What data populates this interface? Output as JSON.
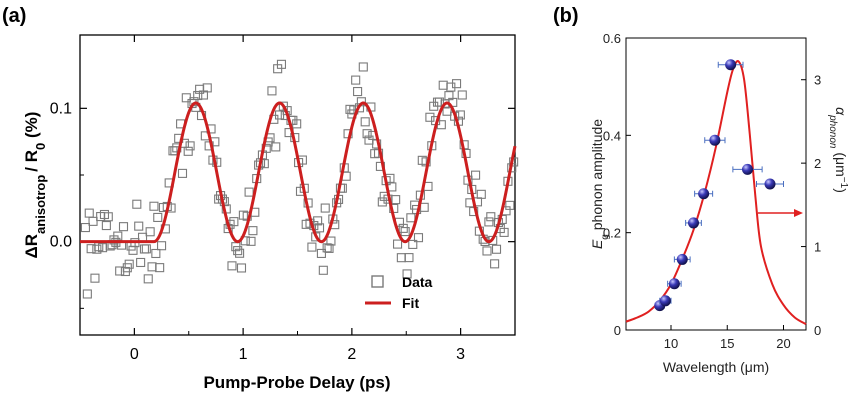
{
  "colors": {
    "fit": "#cc1f1f",
    "data": "#7a7a7a",
    "sphere": "#2a2a9a",
    "alpha_curve": "#e02020"
  },
  "chart_data": [
    {
      "panel_label": "(a)",
      "type": "scatter",
      "xlabel": "Pump-Probe Delay (ps)",
      "ylabel": {
        "main": "ΔR",
        "sub": "anisotrop",
        "mid": "/ R",
        "sub2": "0",
        "tail": " (%)"
      },
      "xlim": [
        -0.5,
        3.5
      ],
      "ylim": [
        -0.07,
        0.155
      ],
      "xticks": [
        0,
        1,
        2,
        3
      ],
      "yticks": [
        0.0,
        0.1
      ],
      "xtick_labels": [
        "0",
        "1",
        "2",
        "3"
      ],
      "ytick_labels": [
        "0.0",
        "0.1"
      ],
      "legend": {
        "position": "bottom-right",
        "entries": [
          "Data",
          "Fit"
        ]
      },
      "series": [
        {
          "name": "Data",
          "style": "open-square",
          "sampling": "x from -0.45 to 3.5 in ~0.0175 ps steps, values scatter about the fit with ±0.02 noise",
          "amplitude": 0.052,
          "offset": 0.052
        },
        {
          "name": "Fit",
          "style": "line",
          "onset": 0.18,
          "period": 0.77,
          "amplitude": 0.052,
          "offset": 0.052
        }
      ]
    },
    {
      "panel_label": "(b)",
      "type": "scatter",
      "xlabel": "Wavelength (μm)",
      "ylabel_left": {
        "sym": "E",
        "sub": "g",
        "rest": " phonon amplitude"
      },
      "ylabel_right": {
        "sym": "α",
        "sub": "phonon",
        "rest": " (μm",
        "sup": "−1",
        "close": ")"
      },
      "xlim": [
        6,
        22
      ],
      "ylim_left": [
        0,
        0.6
      ],
      "ylim_right": [
        0,
        3.5
      ],
      "xticks": [
        10,
        15,
        20
      ],
      "xtick_labels": [
        "10",
        "15",
        "20"
      ],
      "yticks_left": [
        0,
        0.2,
        0.4,
        0.6
      ],
      "ytick_labels_left": [
        "0",
        "0.2",
        "0.4",
        "0.6"
      ],
      "yticks_right": [
        0,
        1,
        2,
        3
      ],
      "ytick_labels_right": [
        "0",
        "1",
        "2",
        "3"
      ],
      "points": [
        {
          "x": 9.0,
          "y": 0.05,
          "xerr": 0.4
        },
        {
          "x": 9.5,
          "y": 0.06,
          "xerr": 0.5
        },
        {
          "x": 10.3,
          "y": 0.095,
          "xerr": 0.6
        },
        {
          "x": 11.0,
          "y": 0.145,
          "xerr": 0.7
        },
        {
          "x": 12.0,
          "y": 0.22,
          "xerr": 0.7
        },
        {
          "x": 12.9,
          "y": 0.28,
          "xerr": 0.8
        },
        {
          "x": 13.9,
          "y": 0.39,
          "xerr": 0.9
        },
        {
          "x": 15.3,
          "y": 0.545,
          "xerr": 1.1
        },
        {
          "x": 16.8,
          "y": 0.33,
          "xerr": 1.3
        },
        {
          "x": 18.8,
          "y": 0.3,
          "xerr": 1.2
        }
      ],
      "alpha_curve": {
        "x": [
          6,
          7,
          8,
          9,
          10,
          11,
          12,
          13,
          14,
          15,
          15.5,
          16,
          16.5,
          17,
          17.5,
          18,
          19,
          20,
          21,
          22
        ],
        "y": [
          0.1,
          0.15,
          0.22,
          0.35,
          0.55,
          0.85,
          1.2,
          1.65,
          2.2,
          2.85,
          3.12,
          3.22,
          3.0,
          2.35,
          1.6,
          1.0,
          0.55,
          0.3,
          0.15,
          0.07
        ]
      },
      "annotation": "arrow pointing to right axis"
    }
  ]
}
